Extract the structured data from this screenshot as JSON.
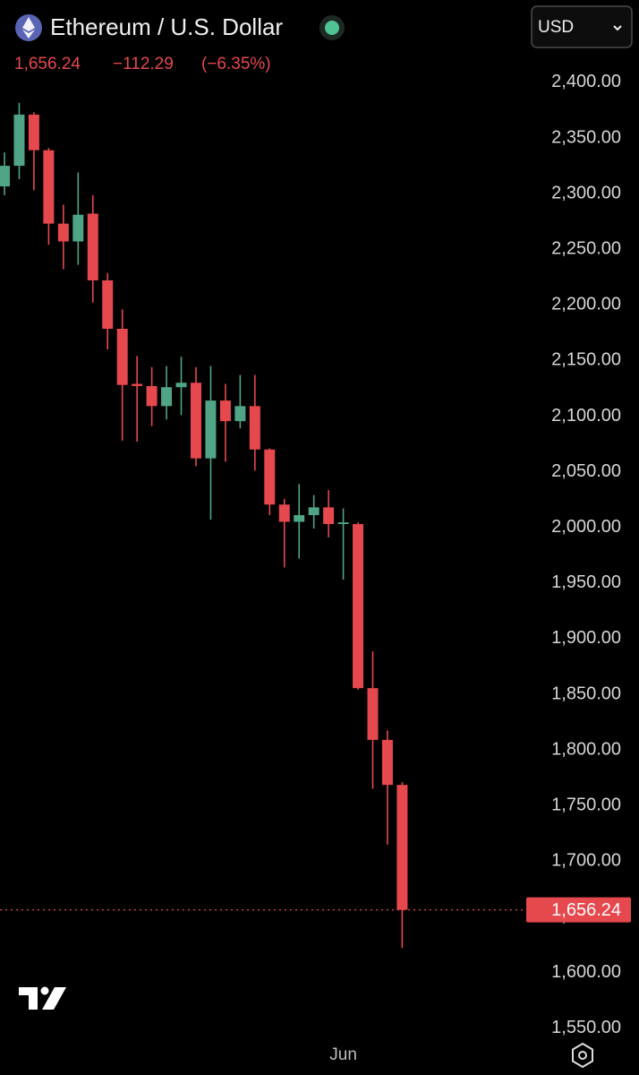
{
  "chart_data": {
    "type": "candlestick",
    "title": "Ethereum / U.S. Dollar",
    "currency": "USD",
    "change_label": "−112.29",
    "change_pct_label": "(−6.35%)",
    "price_line": {
      "value": 1656.24,
      "label": "1,656.24"
    },
    "up_color": "#4fa585",
    "down_color": "#e5484d",
    "categories": [
      null,
      null,
      null,
      null,
      null,
      null,
      null,
      null,
      null,
      null,
      null,
      null,
      null,
      null,
      null,
      null,
      null,
      null,
      null,
      null,
      null,
      null,
      null,
      "Jun",
      null,
      null,
      null,
      null
    ],
    "open": [
      2306.5,
      2325,
      2371,
      2339,
      2273,
      2257,
      2282,
      2222,
      2178.5,
      2129,
      2127,
      2109,
      2126,
      2130,
      2062,
      2114,
      2095.5,
      2109,
      2070,
      2020.5,
      2005,
      2011,
      2018,
      2003,
      2003,
      1855.5,
      1809,
      1768.5
    ],
    "high": [
      2337,
      2381.5,
      2373,
      2341,
      2290,
      2319,
      2298.5,
      2228.5,
      2196,
      2154,
      2144,
      2145,
      2153.5,
      2144,
      2145,
      2129,
      2137,
      2137,
      2071,
      2025.5,
      2039,
      2029,
      2033.5,
      2017,
      2004.5,
      1888.5,
      1817.5,
      1771
    ],
    "low": [
      2298.5,
      2313,
      2303,
      2254,
      2232,
      2236,
      2202,
      2160,
      2078,
      2077,
      2091,
      2097,
      2101,
      2055,
      2007,
      2059,
      2089,
      2051,
      2011,
      1964,
      1972,
      1999,
      1991,
      1953,
      1854,
      1765,
      1715,
      1622
    ],
    "close": [
      2325,
      2371,
      2339,
      2273,
      2257,
      2281,
      2222,
      2178.5,
      2128,
      2127,
      2109,
      2126,
      2130,
      2062,
      2114,
      2095.5,
      2109,
      2070,
      2020.5,
      2005,
      2011,
      2018,
      2003,
      2004.5,
      1855.5,
      1809,
      1768.5,
      1656.24
    ],
    "ylim": [
      1540,
      2474
    ],
    "yticks": [
      {
        "value": 1550,
        "label": "1,550.00"
      },
      {
        "value": 1600,
        "label": "1,600.00"
      },
      {
        "value": 1650,
        "label": "1,650.00"
      },
      {
        "value": 1700,
        "label": "1,700.00"
      },
      {
        "value": 1750,
        "label": "1,750.00"
      },
      {
        "value": 1800,
        "label": "1,800.00"
      },
      {
        "value": 1850,
        "label": "1,850.00"
      },
      {
        "value": 1900,
        "label": "1,900.00"
      },
      {
        "value": 1950,
        "label": "1,950.00"
      },
      {
        "value": 2000,
        "label": "2,000.00"
      },
      {
        "value": 2050,
        "label": "2,050.00"
      },
      {
        "value": 2100,
        "label": "2,100.00"
      },
      {
        "value": 2150,
        "label": "2,150.00"
      },
      {
        "value": 2200,
        "label": "2,200.00"
      },
      {
        "value": 2250,
        "label": "2,250.00"
      },
      {
        "value": 2300,
        "label": "2,300.00"
      },
      {
        "value": 2350,
        "label": "2,350.00"
      },
      {
        "value": 2400,
        "label": "2,400.00"
      }
    ],
    "grid": false
  }
}
